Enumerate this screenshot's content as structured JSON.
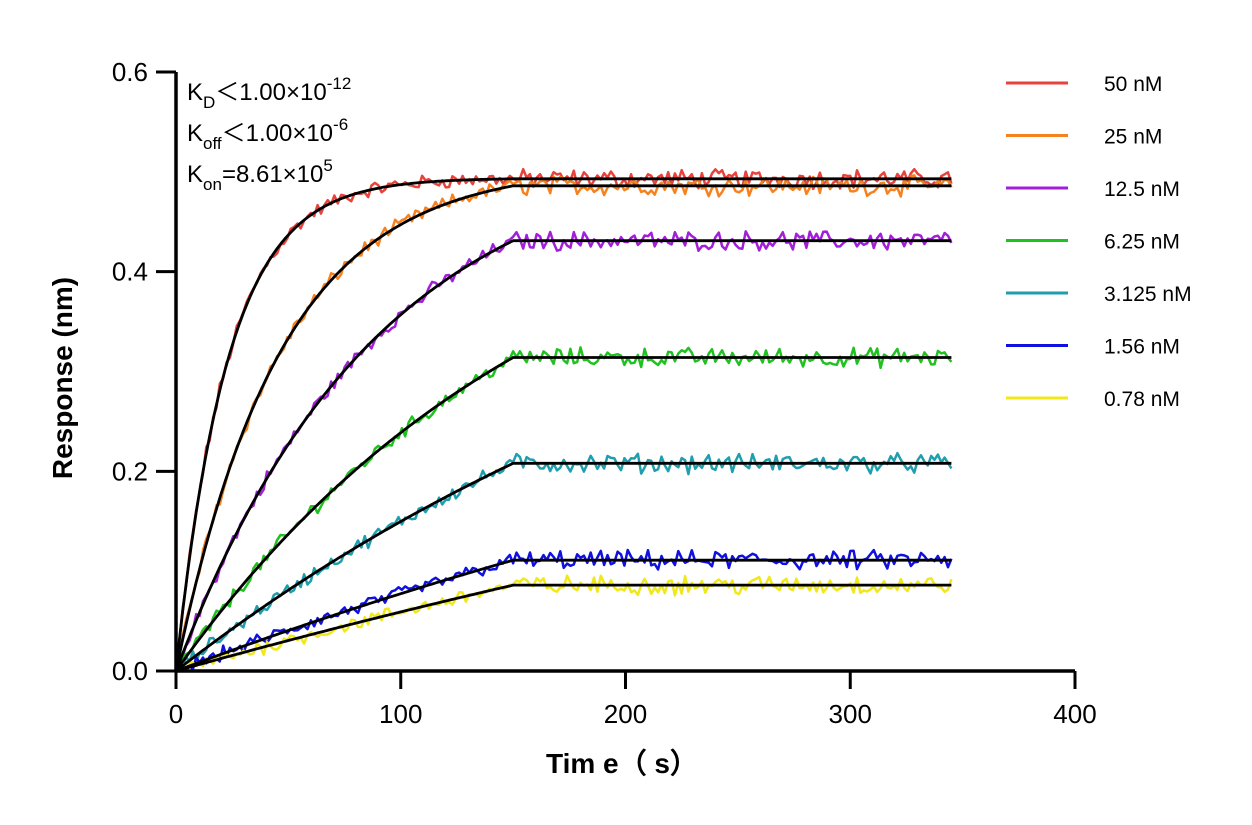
{
  "chart_data": {
    "type": "line",
    "title": "",
    "xlabel": "Tim e（ s）",
    "ylabel": "Response (nm)",
    "xlim": [
      0,
      400
    ],
    "ylim": [
      0,
      0.6
    ],
    "xticks": [
      0,
      100,
      200,
      300,
      400
    ],
    "yticks": [
      0,
      0.2,
      0.4,
      0.6
    ],
    "xtick_labels": [
      "0",
      "100",
      "200",
      "300",
      "400"
    ],
    "ytick_labels": [
      "0.0",
      "0.2",
      "0.4",
      "0.6"
    ],
    "grid": false,
    "legend_position": "right",
    "association_end_s": 150,
    "end_s": 345,
    "annotations": [
      {
        "main": "K",
        "sub": "D",
        "rest": "＜1.00×10",
        "sup": "-12"
      },
      {
        "main": "K",
        "sub": "off",
        "rest": "＜1.00×10",
        "sup": "-6"
      },
      {
        "main": "K",
        "sub": "on",
        "rest": "=8.61×10",
        "sup": "5"
      }
    ],
    "series": [
      {
        "name": "50 nM",
        "color": "#e8423c",
        "plateau": 0.493,
        "rate": 0.0432,
        "fit_color": "#000000"
      },
      {
        "name": "25 nM",
        "color": "#f5821f",
        "plateau": 0.486,
        "rate": 0.0215,
        "fit_color": "#000000"
      },
      {
        "name": "12.5 nM",
        "color": "#a21fd8",
        "plateau": 0.431,
        "rate": 0.0112,
        "fit_color": "#000000"
      },
      {
        "name": "6.25 nM",
        "color": "#1fc21f",
        "plateau": 0.314,
        "rate": 0.006,
        "fit_color": "#000000"
      },
      {
        "name": "3.125 nM",
        "color": "#1f9eae",
        "plateau": 0.208,
        "rate": 0.0033,
        "fit_color": "#000000"
      },
      {
        "name": "1.56 nM",
        "color": "#1010e0",
        "plateau": 0.111,
        "rate": 0.0019,
        "fit_color": "#000000"
      },
      {
        "name": "0.78 nM",
        "color": "#f0e81a",
        "plateau": 0.086,
        "rate": 0.0013,
        "fit_color": "#000000"
      }
    ]
  }
}
